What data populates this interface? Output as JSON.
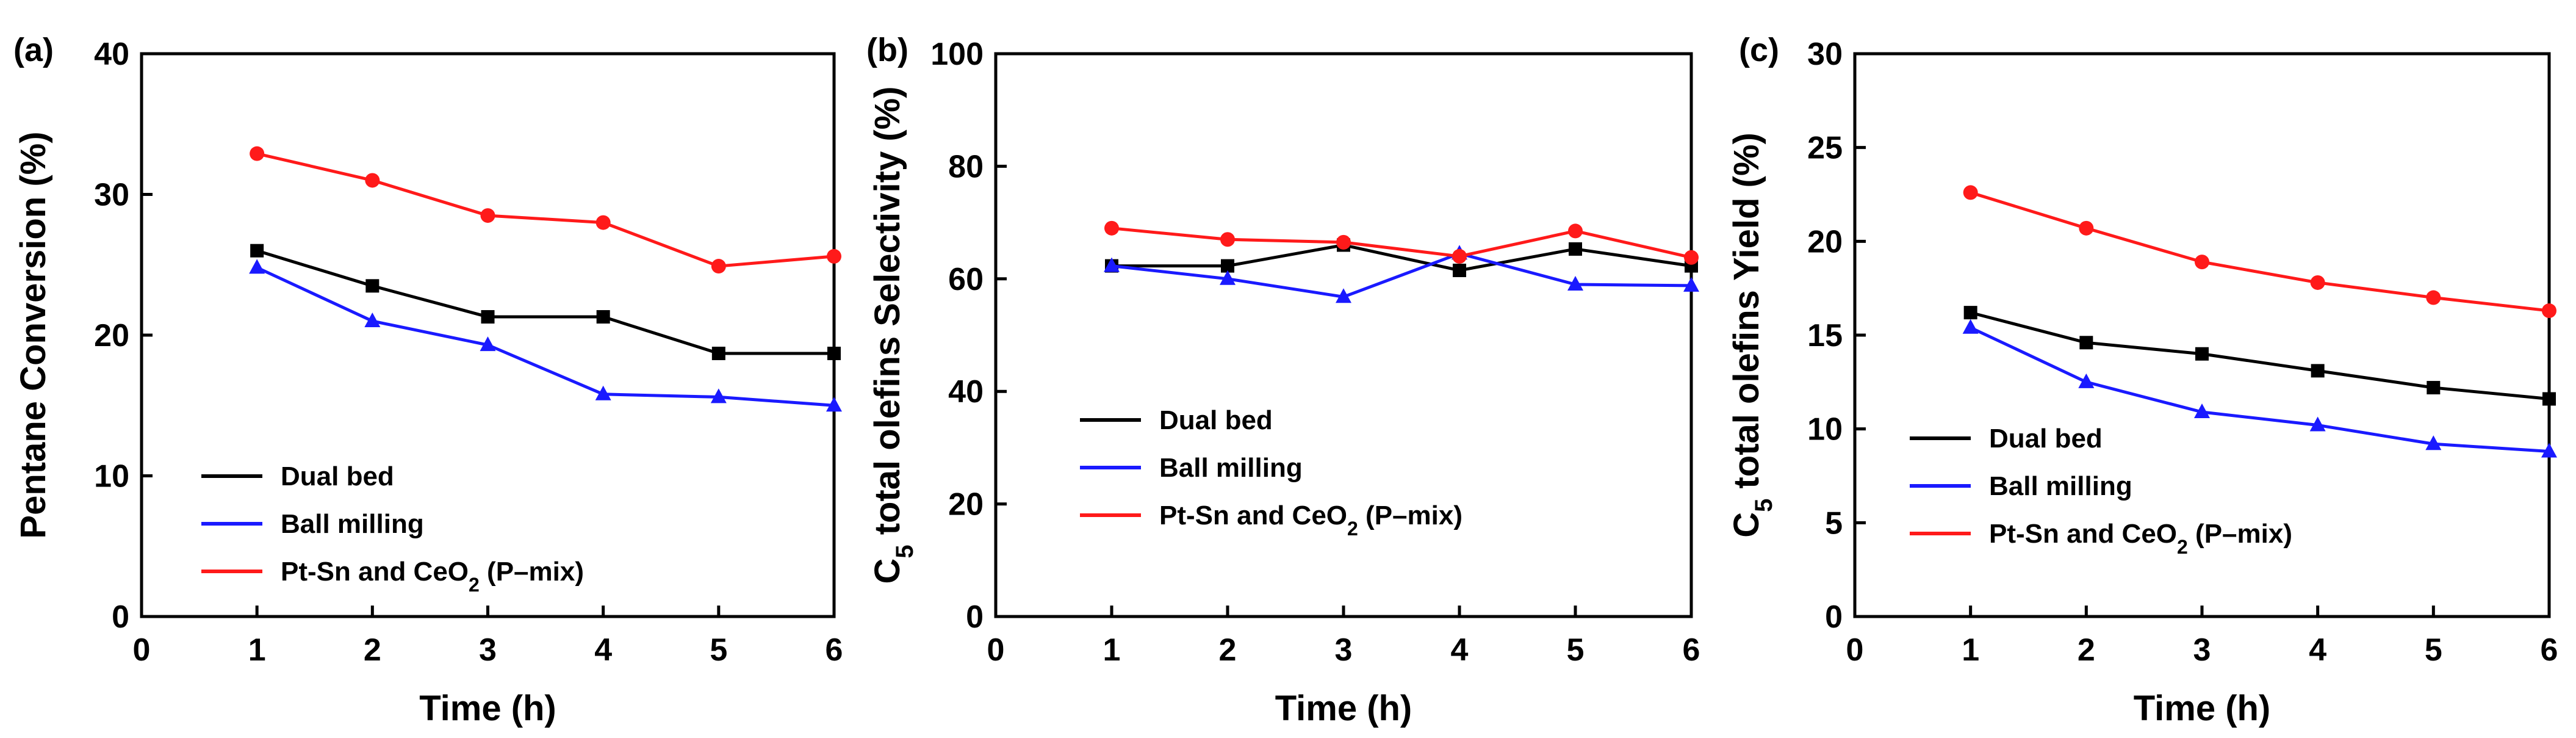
{
  "figure_title": "",
  "colors": {
    "dual_bed": "#000000",
    "ball_milling": "#1a1aff",
    "p_mix": "#ff1a1a"
  },
  "chart_data": [
    {
      "type": "line",
      "panel": "(a)",
      "title": "",
      "xlabel": "Time (h)",
      "ylabel": "Pentane Conversion (%)",
      "ylabel_parts": [
        "Pentane Conversion (%)"
      ],
      "xlim": [
        0,
        6
      ],
      "ylim": [
        0,
        40
      ],
      "xticks": [
        0,
        1,
        2,
        3,
        4,
        5,
        6
      ],
      "yticks": [
        0,
        10,
        20,
        30,
        40
      ],
      "grid": false,
      "legend_position": "lower-left",
      "x": [
        1,
        2,
        3,
        4,
        5,
        6
      ],
      "series": [
        {
          "name": "Dual bed",
          "legend_parts": [
            "Dual bed"
          ],
          "marker": "square",
          "color": "#000000",
          "values": [
            26.0,
            23.5,
            21.3,
            21.3,
            18.7,
            18.7
          ]
        },
        {
          "name": "Ball milling",
          "legend_parts": [
            "Ball milling"
          ],
          "marker": "triangle",
          "color": "#1a1aff",
          "values": [
            24.8,
            21.0,
            19.3,
            15.8,
            15.6,
            15.0
          ]
        },
        {
          "name": "Pt-Sn and CeO2 (P–mix)",
          "legend_parts": [
            "Pt-Sn and CeO",
            "2",
            "  (P–mix)"
          ],
          "marker": "circle",
          "color": "#ff1a1a",
          "values": [
            32.9,
            31.0,
            28.5,
            28.0,
            24.9,
            25.6
          ]
        }
      ]
    },
    {
      "type": "line",
      "panel": "(b)",
      "title": "",
      "xlabel": "Time (h)",
      "ylabel": "C5 total olefins Selectivity (%)",
      "ylabel_parts": [
        "C",
        "5",
        " total olefins Selectivity (%)"
      ],
      "xlim": [
        0,
        6
      ],
      "ylim": [
        0,
        100
      ],
      "xticks": [
        0,
        1,
        2,
        3,
        4,
        5,
        6
      ],
      "yticks": [
        0,
        20,
        40,
        60,
        80,
        100
      ],
      "grid": false,
      "legend_position": "lower-left",
      "x": [
        1,
        2,
        3,
        4,
        5,
        6
      ],
      "series": [
        {
          "name": "Dual bed",
          "legend_parts": [
            "Dual bed"
          ],
          "marker": "square",
          "color": "#000000",
          "values": [
            62.3,
            62.3,
            66.0,
            61.5,
            65.3,
            62.3
          ]
        },
        {
          "name": "Ball milling",
          "legend_parts": [
            "Ball milling"
          ],
          "marker": "triangle",
          "color": "#1a1aff",
          "values": [
            62.3,
            60.0,
            56.8,
            64.5,
            59.0,
            58.8
          ]
        },
        {
          "name": "Pt-Sn and CeO2 (P–mix)",
          "legend_parts": [
            "Pt-Sn and CeO",
            "2",
            "  (P–mix)"
          ],
          "marker": "circle",
          "color": "#ff1a1a",
          "values": [
            69.0,
            67.0,
            66.5,
            64.0,
            68.5,
            63.8
          ]
        }
      ]
    },
    {
      "type": "line",
      "panel": "(c)",
      "title": "",
      "xlabel": "Time (h)",
      "ylabel": "C5 total olefins Yield (%)",
      "ylabel_parts": [
        "C",
        "5",
        " total olefins Yield (%)"
      ],
      "xlim": [
        0,
        6
      ],
      "ylim": [
        0,
        30
      ],
      "xticks": [
        0,
        1,
        2,
        3,
        4,
        5,
        6
      ],
      "yticks": [
        0,
        5,
        10,
        15,
        20,
        25,
        30
      ],
      "grid": false,
      "legend_position": "lower-left",
      "x": [
        1,
        2,
        3,
        4,
        5,
        6
      ],
      "series": [
        {
          "name": "Dual bed",
          "legend_parts": [
            "Dual bed"
          ],
          "marker": "square",
          "color": "#000000",
          "values": [
            16.2,
            14.6,
            14.0,
            13.1,
            12.2,
            11.6
          ]
        },
        {
          "name": "Ball milling",
          "legend_parts": [
            "Ball milling"
          ],
          "marker": "triangle",
          "color": "#1a1aff",
          "values": [
            15.4,
            12.5,
            10.9,
            10.2,
            9.2,
            8.8
          ]
        },
        {
          "name": "Pt-Sn and CeO2 (P–mix)",
          "legend_parts": [
            "Pt-Sn and CeO",
            "2",
            "  (P–mix)"
          ],
          "marker": "circle",
          "color": "#ff1a1a",
          "values": [
            22.6,
            20.7,
            18.9,
            17.8,
            17.0,
            16.3
          ]
        }
      ]
    }
  ]
}
